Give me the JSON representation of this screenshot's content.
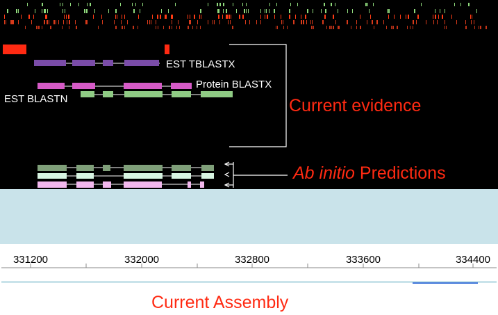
{
  "tracks": {
    "est_tblastx_label": "EST TBLASTX",
    "protein_blastx_label": "Protein BLASTX",
    "est_blastn_label": "EST BLASTN",
    "current_evidence_label": "Current evidence",
    "ab_initio_italic": "Ab initio",
    "predictions_label": " Predictions",
    "arrow_glyph": "‹"
  },
  "ruler": {
    "ticks": [
      "331200",
      "332000",
      "332800",
      "333600",
      "334400"
    ]
  },
  "assembly": {
    "label": "Current Assembly"
  },
  "colors": {
    "panel_bg": "#000000",
    "empty_panel": "#c9e3ea",
    "red_feature": "#ff2a12",
    "tblastx": "#7a4ca8",
    "blastx": "#d65bc7",
    "blastn": "#8fcb84",
    "pred1": "#7f9f79",
    "pred2": "#d8f5e2",
    "pred3": "#f2b8ee",
    "assembly_highlight": "#3a72d8"
  }
}
